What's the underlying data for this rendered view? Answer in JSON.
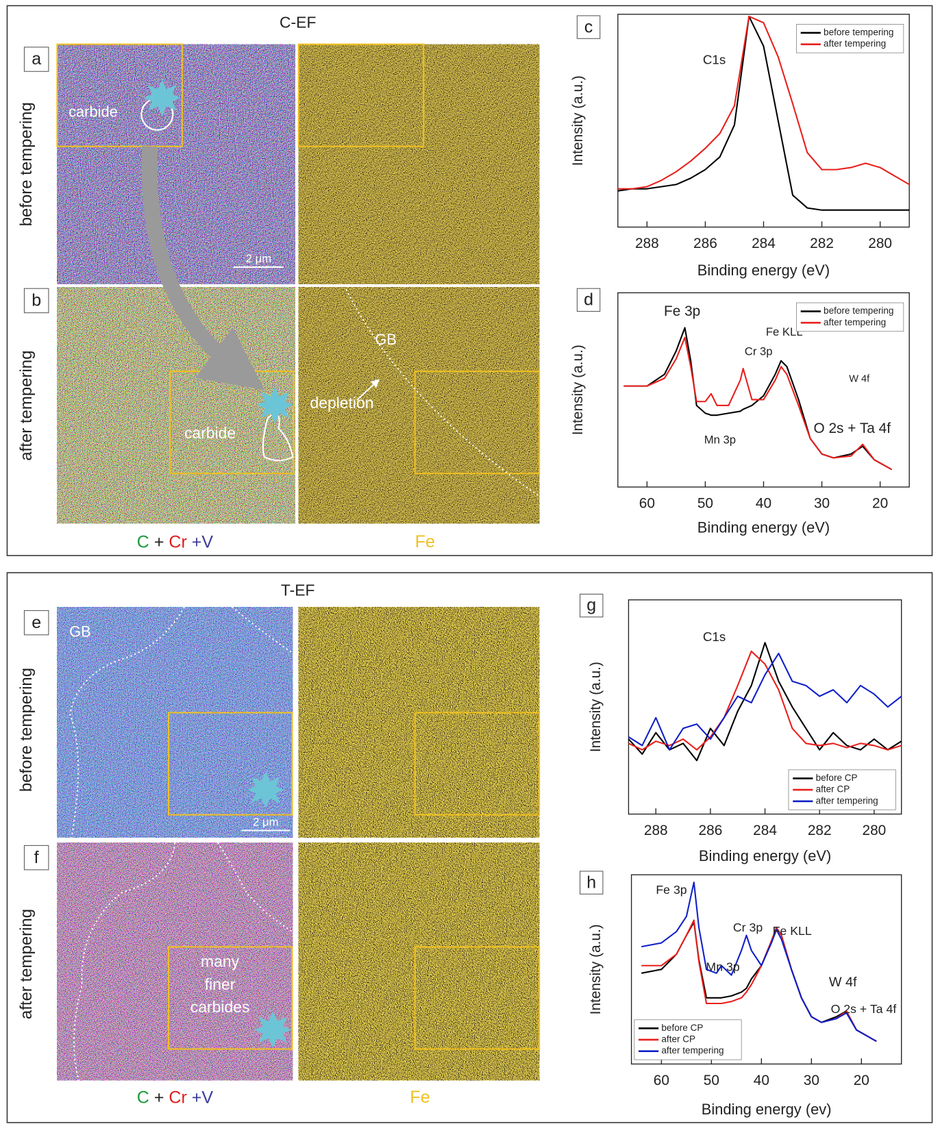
{
  "top": {
    "title": "C-EF",
    "letters": [
      "a",
      "b"
    ],
    "rows": [
      "before tempering",
      "after tempering"
    ],
    "carbide": [
      "carbide",
      "carbide"
    ],
    "scale": "2 μm",
    "gb": "GB",
    "depletion": "depletion",
    "map_label": [
      "C",
      "+",
      "Cr",
      "+V"
    ],
    "fe_label": "Fe"
  },
  "bottom": {
    "title": "T-EF",
    "letters": [
      "e",
      "f"
    ],
    "rows": [
      "before tempering",
      "after tempering"
    ],
    "gb": "GB",
    "scale": "2 μm",
    "many_finer_carbides": [
      "many",
      "finer",
      "carbides"
    ],
    "map_label": [
      "C",
      "+",
      "Cr",
      "+V"
    ],
    "fe_label": "Fe"
  },
  "chart_data": [
    {
      "type": "line",
      "panel": "c",
      "xlabel": "Binding energy (eV)",
      "ylabel": "Intensity (a.u.)",
      "annotations": [
        "C1s"
      ],
      "legend": "upper right",
      "xlim": [
        289,
        279
      ],
      "xticks": [
        288,
        286,
        284,
        282,
        280
      ],
      "ylim": [
        0,
        100
      ],
      "x": [
        289,
        288.5,
        288,
        287.5,
        287,
        286.5,
        286,
        285.5,
        285,
        284.5,
        284,
        283.5,
        283,
        282.5,
        282,
        281.5,
        281,
        280.5,
        280,
        279.5,
        279
      ],
      "series": [
        {
          "name": "before tempering",
          "color": "#000000",
          "values": [
            17,
            18,
            18,
            19,
            20,
            23,
            27,
            33,
            48,
            99,
            85,
            50,
            15,
            9,
            8,
            8,
            8,
            8,
            8,
            8,
            8
          ]
        },
        {
          "name": "after tempering",
          "color": "#e8201c",
          "values": [
            18,
            18,
            19,
            22,
            26,
            31,
            37,
            44,
            57,
            99,
            96,
            80,
            58,
            35,
            27,
            27,
            28,
            30,
            28,
            24,
            20
          ]
        }
      ]
    },
    {
      "type": "line",
      "panel": "d",
      "xlabel": "Binding energy (eV)",
      "ylabel": "Intensity (a.u.)",
      "annotations": [
        "Fe 3p",
        "Cr 3p",
        "Fe KLL",
        "W 4f",
        "Mn 3p",
        "O 2s + Ta 4f"
      ],
      "legend": "upper right",
      "xlim": [
        65,
        15
      ],
      "xticks": [
        60,
        50,
        40,
        30,
        20
      ],
      "ylim": [
        0,
        100
      ],
      "x": [
        64,
        60,
        57,
        55,
        53.5,
        52.5,
        51.5,
        50,
        49,
        48,
        46,
        44,
        43.5,
        42,
        40,
        38,
        37,
        36,
        34,
        32,
        30,
        28,
        25,
        23,
        21,
        18
      ],
      "series": [
        {
          "name": "before tempering",
          "color": "#000000",
          "values": [
            52,
            52,
            58,
            70,
            82,
            65,
            42,
            38,
            37,
            37,
            38,
            39,
            40,
            42,
            47,
            58,
            65,
            62,
            45,
            25,
            17,
            15,
            17,
            21,
            14,
            9
          ]
        },
        {
          "name": "after tempering",
          "color": "#e8201c",
          "values": [
            52,
            52,
            56,
            66,
            77,
            62,
            44,
            44,
            48,
            42,
            42,
            55,
            61,
            45,
            45,
            55,
            62,
            58,
            42,
            25,
            17,
            15,
            16,
            22,
            14,
            9
          ]
        }
      ]
    },
    {
      "type": "line",
      "panel": "g",
      "xlabel": "Binding energy (eV)",
      "ylabel": "Intensity (a.u.)",
      "annotations": [
        "C1s"
      ],
      "legend": "lower right",
      "xlim": [
        289,
        279
      ],
      "xticks": [
        288,
        286,
        284,
        282,
        280
      ],
      "ylim": [
        0,
        100
      ],
      "x": [
        289,
        288.5,
        288,
        287.5,
        287,
        286.5,
        286,
        285.5,
        285,
        284.5,
        284,
        283.5,
        283,
        282.5,
        282,
        281.5,
        281,
        280.5,
        280,
        279.5,
        279
      ],
      "series": [
        {
          "name": "before CP",
          "color": "#000000",
          "values": [
            35,
            28,
            38,
            30,
            33,
            25,
            40,
            32,
            48,
            60,
            80,
            62,
            50,
            40,
            30,
            38,
            32,
            30,
            35,
            30,
            34
          ]
        },
        {
          "name": "after CP",
          "color": "#e8201c",
          "values": [
            33,
            30,
            34,
            32,
            35,
            30,
            36,
            45,
            60,
            76,
            70,
            58,
            40,
            33,
            32,
            33,
            31,
            33,
            32,
            30,
            32
          ]
        },
        {
          "name": "after tempering",
          "color": "#1020c8",
          "values": [
            36,
            32,
            45,
            30,
            40,
            42,
            35,
            45,
            55,
            52,
            65,
            75,
            62,
            60,
            55,
            58,
            52,
            60,
            56,
            50,
            55
          ]
        }
      ]
    },
    {
      "type": "line",
      "panel": "h",
      "xlabel": "Binding energy (ev)",
      "ylabel": "Intensity (a.u.)",
      "annotations": [
        "Fe 3p",
        "Mn 3p",
        "Cr 3p",
        "Fe KLL",
        "W 4f",
        "O 2s + Ta 4f"
      ],
      "legend": "lower left",
      "xlim": [
        66,
        12
      ],
      "xticks": [
        60,
        50,
        40,
        30,
        20
      ],
      "ylim": [
        0,
        100
      ],
      "x": [
        64,
        60,
        57,
        55,
        53.5,
        52.5,
        51,
        49,
        48,
        46,
        44,
        43,
        42,
        40,
        38,
        37,
        36,
        34,
        32,
        30,
        28,
        25,
        23,
        21,
        17
      ],
      "series": [
        {
          "name": "before CP",
          "color": "#000000",
          "values": [
            48,
            50,
            58,
            68,
            75,
            55,
            35,
            35,
            35,
            36,
            38,
            40,
            45,
            52,
            65,
            72,
            68,
            50,
            35,
            25,
            22,
            25,
            28,
            18,
            12
          ]
        },
        {
          "name": "after CP",
          "color": "#e8201c",
          "values": [
            52,
            52,
            58,
            68,
            76,
            54,
            32,
            32,
            32,
            33,
            35,
            38,
            42,
            52,
            65,
            72,
            68,
            50,
            35,
            25,
            22,
            24,
            28,
            18,
            12
          ]
        },
        {
          "name": "after tempering",
          "color": "#1020c8",
          "values": [
            62,
            64,
            70,
            78,
            96,
            72,
            50,
            48,
            52,
            47,
            60,
            68,
            60,
            52,
            64,
            71,
            66,
            50,
            35,
            25,
            22,
            24,
            27,
            18,
            12
          ]
        }
      ]
    }
  ]
}
